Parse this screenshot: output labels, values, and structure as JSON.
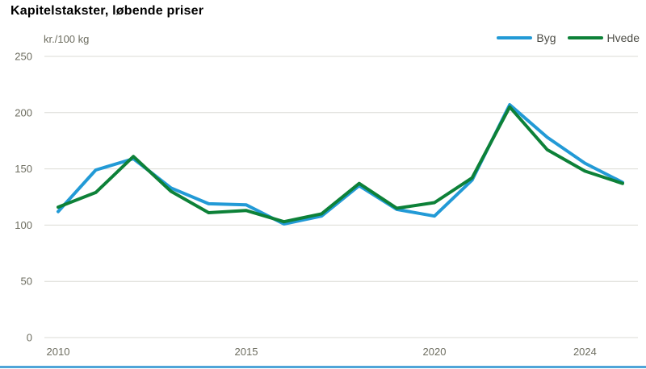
{
  "page": {
    "title": "Kapitelstakster, løbende priser",
    "unit_label": "kr./100 kg"
  },
  "colors": {
    "byg_line": "#229AD6",
    "hvede_line": "#0D8138",
    "grid": "#DBDBD5",
    "axis_text": "#6D6D60",
    "legend_text": "#4B4B44",
    "bottom_border": "#4FA5D8"
  },
  "legend": {
    "items": [
      "Byg",
      "Hvede"
    ]
  },
  "chart_data": {
    "type": "line",
    "title": "Kapitelstakster, løbende priser",
    "ylabel": "kr./100 kg",
    "xlabel": "",
    "x": [
      2010,
      2011,
      2012,
      2013,
      2014,
      2015,
      2016,
      2017,
      2018,
      2019,
      2020,
      2021,
      2022,
      2023,
      2024,
      2025
    ],
    "series": [
      {
        "name": "Byg",
        "color": "#229AD6",
        "values": [
          112,
          149,
          159,
          133,
          119,
          118,
          101,
          108,
          135,
          114,
          108,
          140,
          207,
          178,
          155,
          138
        ]
      },
      {
        "name": "Hvede",
        "color": "#0D8138",
        "values": [
          116,
          129,
          161,
          130,
          111,
          113,
          103,
          110,
          137,
          115,
          120,
          142,
          205,
          167,
          148,
          137
        ]
      }
    ],
    "ylim": [
      0,
      250
    ],
    "yticks": [
      0,
      50,
      100,
      150,
      200,
      250
    ],
    "xticks": [
      2010,
      2015,
      2020,
      2024
    ],
    "grid": true,
    "legend_position": "top-right"
  }
}
